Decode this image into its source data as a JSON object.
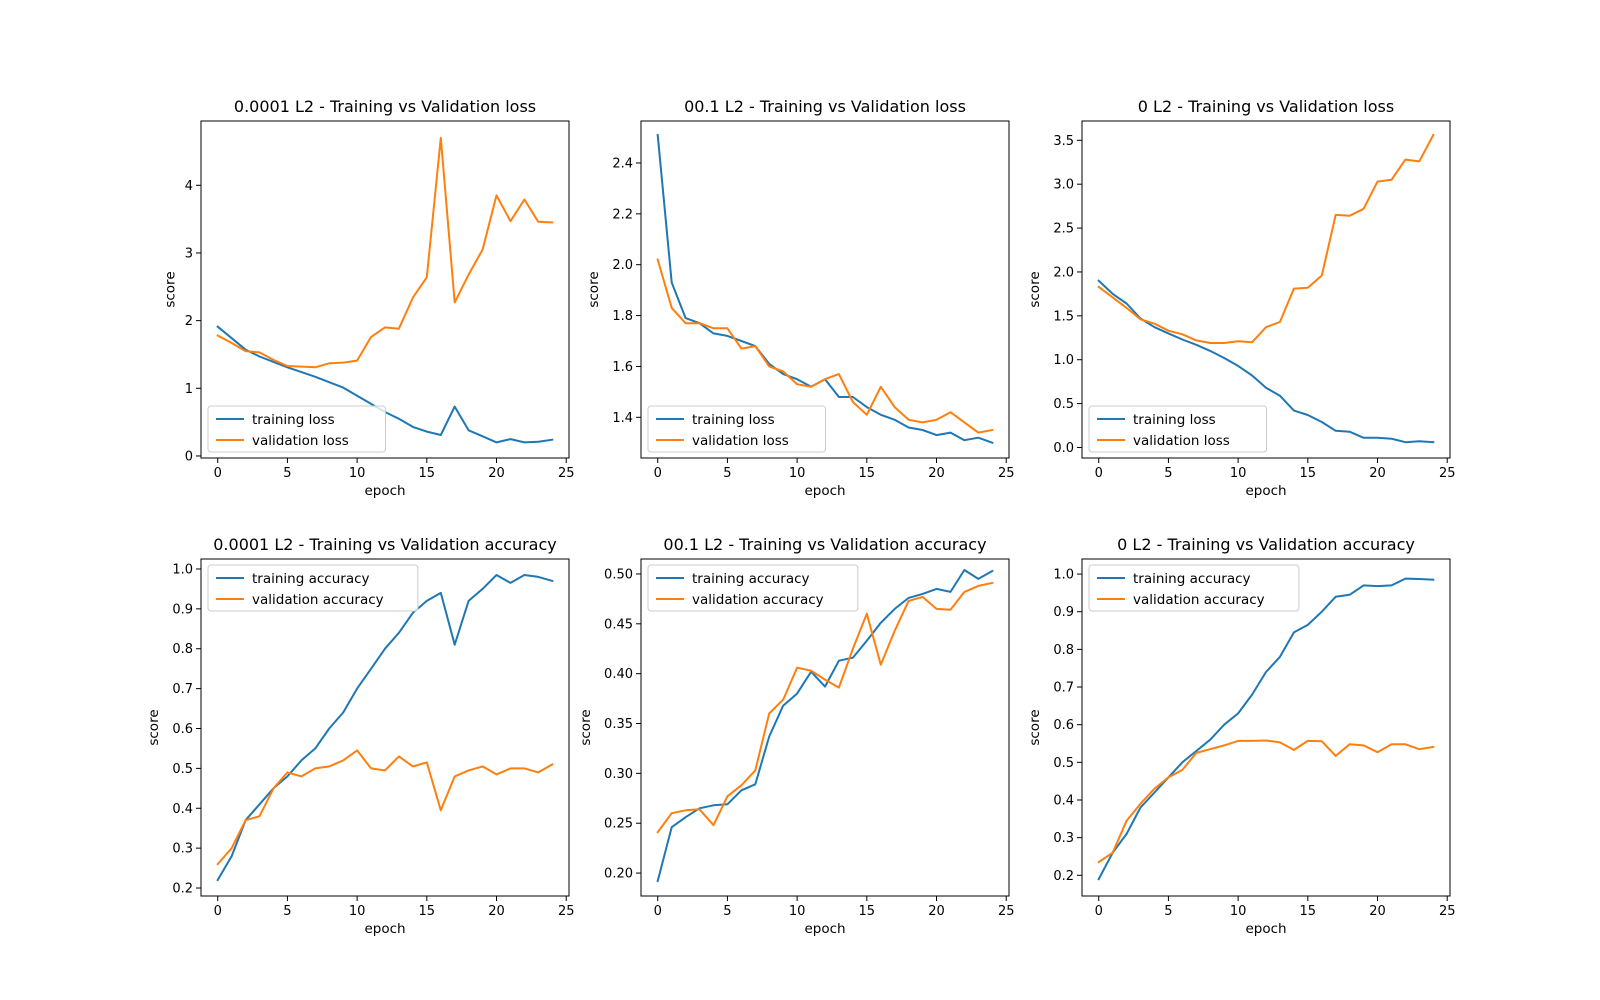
{
  "colors": {
    "training": "#1f77b4",
    "validation": "#ff7f0e"
  },
  "chart_data": [
    {
      "type": "line",
      "title": "0.0001 L2 - Training vs Validation loss",
      "xlabel": "epoch",
      "ylabel": "score",
      "xlim": [
        -1.2,
        25.2
      ],
      "ylim": [
        -0.03,
        4.95
      ],
      "xticks": [
        0,
        5,
        10,
        15,
        20,
        25
      ],
      "xtick_labels": [
        "0",
        "5",
        "10",
        "15",
        "20",
        "25"
      ],
      "yticks": [
        0,
        1,
        2,
        3,
        4
      ],
      "ytick_labels": [
        "0",
        "1",
        "2",
        "3",
        "4"
      ],
      "legend": "lower-left",
      "x": [
        0,
        1,
        2,
        3,
        4,
        5,
        6,
        7,
        8,
        9,
        10,
        11,
        12,
        13,
        14,
        15,
        16,
        17,
        18,
        19,
        20,
        21,
        22,
        23,
        24
      ],
      "series": [
        {
          "name": "training loss",
          "color": "training",
          "values": [
            1.91,
            1.74,
            1.57,
            1.47,
            1.39,
            1.31,
            1.24,
            1.17,
            1.09,
            1.01,
            0.89,
            0.77,
            0.65,
            0.55,
            0.43,
            0.36,
            0.31,
            0.73,
            0.38,
            0.29,
            0.2,
            0.25,
            0.2,
            0.21,
            0.24
          ]
        },
        {
          "name": "validation loss",
          "color": "validation",
          "values": [
            1.78,
            1.67,
            1.55,
            1.53,
            1.42,
            1.33,
            1.32,
            1.31,
            1.37,
            1.38,
            1.41,
            1.76,
            1.9,
            1.88,
            2.34,
            2.64,
            4.7,
            2.27,
            2.68,
            3.05,
            3.85,
            3.47,
            3.79,
            3.46,
            3.45
          ]
        }
      ]
    },
    {
      "type": "line",
      "title": "00.1 L2 - Training vs Validation loss",
      "xlabel": "epoch",
      "ylabel": "score",
      "xlim": [
        -1.2,
        25.2
      ],
      "ylim": [
        1.24,
        2.565
      ],
      "xticks": [
        0,
        5,
        10,
        15,
        20,
        25
      ],
      "xtick_labels": [
        "0",
        "5",
        "10",
        "15",
        "20",
        "25"
      ],
      "yticks": [
        1.4,
        1.6,
        1.8,
        2.0,
        2.2,
        2.4
      ],
      "ytick_labels": [
        "1.4",
        "1.6",
        "1.8",
        "2.0",
        "2.2",
        "2.4"
      ],
      "legend": "lower-left",
      "x": [
        0,
        1,
        2,
        3,
        4,
        5,
        6,
        7,
        8,
        9,
        10,
        11,
        12,
        13,
        14,
        15,
        16,
        17,
        18,
        19,
        20,
        21,
        22,
        23,
        24
      ],
      "series": [
        {
          "name": "training loss",
          "color": "training",
          "values": [
            2.51,
            1.93,
            1.79,
            1.77,
            1.73,
            1.72,
            1.7,
            1.68,
            1.61,
            1.57,
            1.55,
            1.52,
            1.55,
            1.48,
            1.48,
            1.44,
            1.41,
            1.39,
            1.36,
            1.35,
            1.33,
            1.34,
            1.31,
            1.32,
            1.3
          ]
        },
        {
          "name": "validation loss",
          "color": "validation",
          "values": [
            2.02,
            1.83,
            1.77,
            1.77,
            1.75,
            1.75,
            1.67,
            1.68,
            1.6,
            1.58,
            1.53,
            1.52,
            1.55,
            1.57,
            1.46,
            1.41,
            1.52,
            1.44,
            1.39,
            1.38,
            1.39,
            1.42,
            1.38,
            1.34,
            1.35
          ]
        }
      ]
    },
    {
      "type": "line",
      "title": "0 L2 - Training vs Validation loss",
      "xlabel": "epoch",
      "ylabel": "score",
      "xlim": [
        -1.2,
        25.2
      ],
      "ylim": [
        -0.12,
        3.72
      ],
      "xticks": [
        0,
        5,
        10,
        15,
        20,
        25
      ],
      "xtick_labels": [
        "0",
        "5",
        "10",
        "15",
        "20",
        "25"
      ],
      "yticks": [
        0.0,
        0.5,
        1.0,
        1.5,
        2.0,
        2.5,
        3.0,
        3.5
      ],
      "ytick_labels": [
        "0.0",
        "0.5",
        "1.0",
        "1.5",
        "2.0",
        "2.5",
        "3.0",
        "3.5"
      ],
      "legend": "lower-left",
      "x": [
        0,
        1,
        2,
        3,
        4,
        5,
        6,
        7,
        8,
        9,
        10,
        11,
        12,
        13,
        14,
        15,
        16,
        17,
        18,
        19,
        20,
        21,
        22,
        23,
        24
      ],
      "series": [
        {
          "name": "training loss",
          "color": "training",
          "values": [
            1.9,
            1.75,
            1.64,
            1.47,
            1.37,
            1.3,
            1.23,
            1.17,
            1.1,
            1.02,
            0.93,
            0.82,
            0.68,
            0.59,
            0.42,
            0.37,
            0.29,
            0.19,
            0.18,
            0.11,
            0.11,
            0.1,
            0.06,
            0.07,
            0.06
          ]
        },
        {
          "name": "validation loss",
          "color": "validation",
          "values": [
            1.83,
            1.71,
            1.59,
            1.46,
            1.41,
            1.33,
            1.29,
            1.22,
            1.19,
            1.19,
            1.21,
            1.2,
            1.37,
            1.43,
            1.81,
            1.82,
            1.96,
            2.65,
            2.64,
            2.72,
            3.03,
            3.05,
            3.28,
            3.26,
            3.56
          ]
        }
      ]
    },
    {
      "type": "line",
      "title": "0.0001 L2 - Training vs Validation accuracy",
      "xlabel": "epoch",
      "ylabel": "score",
      "xlim": [
        -1.2,
        25.2
      ],
      "ylim": [
        0.18,
        1.025
      ],
      "xticks": [
        0,
        5,
        10,
        15,
        20,
        25
      ],
      "xtick_labels": [
        "0",
        "5",
        "10",
        "15",
        "20",
        "25"
      ],
      "yticks": [
        0.2,
        0.3,
        0.4,
        0.5,
        0.6,
        0.7,
        0.8,
        0.9,
        1.0
      ],
      "ytick_labels": [
        "0.2",
        "0.3",
        "0.4",
        "0.5",
        "0.6",
        "0.7",
        "0.8",
        "0.9",
        "1.0"
      ],
      "legend": "upper-left",
      "x": [
        0,
        1,
        2,
        3,
        4,
        5,
        6,
        7,
        8,
        9,
        10,
        11,
        12,
        13,
        14,
        15,
        16,
        17,
        18,
        19,
        20,
        21,
        22,
        23,
        24
      ],
      "series": [
        {
          "name": "training accuracy",
          "color": "training",
          "values": [
            0.22,
            0.28,
            0.37,
            0.41,
            0.45,
            0.48,
            0.52,
            0.55,
            0.6,
            0.64,
            0.7,
            0.75,
            0.8,
            0.84,
            0.89,
            0.92,
            0.94,
            0.81,
            0.92,
            0.95,
            0.985,
            0.965,
            0.985,
            0.98,
            0.97
          ]
        },
        {
          "name": "validation accuracy",
          "color": "validation",
          "values": [
            0.26,
            0.3,
            0.37,
            0.38,
            0.45,
            0.49,
            0.48,
            0.5,
            0.505,
            0.52,
            0.545,
            0.5,
            0.495,
            0.53,
            0.505,
            0.515,
            0.395,
            0.48,
            0.495,
            0.505,
            0.485,
            0.5,
            0.5,
            0.49,
            0.51
          ]
        }
      ]
    },
    {
      "type": "line",
      "title": "00.1 L2 - Training vs Validation accuracy",
      "xlabel": "epoch",
      "ylabel": "score",
      "xlim": [
        -1.2,
        25.2
      ],
      "ylim": [
        0.177,
        0.515
      ],
      "xticks": [
        0,
        5,
        10,
        15,
        20,
        25
      ],
      "xtick_labels": [
        "0",
        "5",
        "10",
        "15",
        "20",
        "25"
      ],
      "yticks": [
        0.2,
        0.25,
        0.3,
        0.35,
        0.4,
        0.45,
        0.5
      ],
      "ytick_labels": [
        "0.20",
        "0.25",
        "0.30",
        "0.35",
        "0.40",
        "0.45",
        "0.50"
      ],
      "legend": "upper-left",
      "x": [
        0,
        1,
        2,
        3,
        4,
        5,
        6,
        7,
        8,
        9,
        10,
        11,
        12,
        13,
        14,
        15,
        16,
        17,
        18,
        19,
        20,
        21,
        22,
        23,
        24
      ],
      "series": [
        {
          "name": "training accuracy",
          "color": "training",
          "values": [
            0.192,
            0.246,
            0.256,
            0.265,
            0.268,
            0.269,
            0.283,
            0.289,
            0.337,
            0.368,
            0.38,
            0.402,
            0.387,
            0.413,
            0.416,
            0.433,
            0.451,
            0.465,
            0.476,
            0.48,
            0.485,
            0.482,
            0.504,
            0.495,
            0.503
          ]
        },
        {
          "name": "validation accuracy",
          "color": "validation",
          "values": [
            0.241,
            0.26,
            0.263,
            0.264,
            0.248,
            0.277,
            0.288,
            0.303,
            0.36,
            0.374,
            0.406,
            0.403,
            0.394,
            0.386,
            0.425,
            0.46,
            0.409,
            0.443,
            0.473,
            0.477,
            0.465,
            0.464,
            0.482,
            0.488,
            0.491
          ]
        }
      ]
    },
    {
      "type": "line",
      "title": "0 L2 - Training vs Validation accuracy",
      "xlabel": "epoch",
      "ylabel": "score",
      "xlim": [
        -1.2,
        25.2
      ],
      "ylim": [
        0.145,
        1.04
      ],
      "xticks": [
        0,
        5,
        10,
        15,
        20,
        25
      ],
      "xtick_labels": [
        "0",
        "5",
        "10",
        "15",
        "20",
        "25"
      ],
      "yticks": [
        0.2,
        0.3,
        0.4,
        0.5,
        0.6,
        0.7,
        0.8,
        0.9,
        1.0
      ],
      "ytick_labels": [
        "0.2",
        "0.3",
        "0.4",
        "0.5",
        "0.6",
        "0.7",
        "0.8",
        "0.9",
        "1.0"
      ],
      "legend": "upper-left",
      "x": [
        0,
        1,
        2,
        3,
        4,
        5,
        6,
        7,
        8,
        9,
        10,
        11,
        12,
        13,
        14,
        15,
        16,
        17,
        18,
        19,
        20,
        21,
        22,
        23,
        24
      ],
      "series": [
        {
          "name": "training accuracy",
          "color": "training",
          "values": [
            0.19,
            0.26,
            0.31,
            0.38,
            0.42,
            0.46,
            0.5,
            0.53,
            0.56,
            0.6,
            0.63,
            0.68,
            0.74,
            0.78,
            0.845,
            0.865,
            0.9,
            0.94,
            0.945,
            0.97,
            0.968,
            0.97,
            0.988,
            0.987,
            0.985
          ]
        },
        {
          "name": "validation accuracy",
          "color": "validation",
          "values": [
            0.235,
            0.26,
            0.345,
            0.39,
            0.43,
            0.46,
            0.48,
            0.525,
            0.535,
            0.545,
            0.557,
            0.557,
            0.558,
            0.553,
            0.533,
            0.557,
            0.556,
            0.517,
            0.548,
            0.545,
            0.527,
            0.548,
            0.548,
            0.535,
            0.541
          ]
        }
      ]
    }
  ]
}
